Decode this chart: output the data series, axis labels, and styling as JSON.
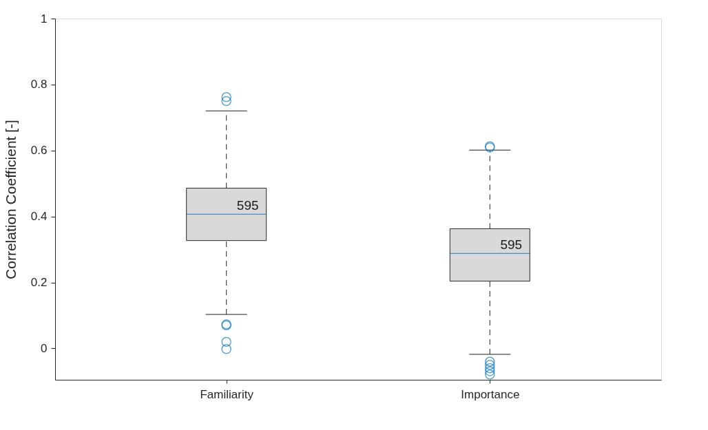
{
  "chart_data": {
    "type": "box",
    "ylabel": "Correlation Coefficient [-]",
    "categories": [
      "Familiarity",
      "Importance"
    ],
    "series": [
      {
        "color": "#d9d9d9",
        "boxes": [
          {
            "low": 0.103,
            "q1": 0.327,
            "median": 0.407,
            "q3": 0.486,
            "high": 0.72,
            "outliers": [
              0.762,
              0.75,
              0.073,
              0.07,
              0.02,
              -0.002
            ]
          },
          {
            "low": -0.018,
            "q1": 0.204,
            "median": 0.288,
            "q3": 0.363,
            "high": 0.601,
            "outliers": [
              0.613,
              0.609,
              -0.04,
              -0.05,
              -0.06,
              -0.069,
              -0.079
            ]
          }
        ]
      }
    ],
    "ylim": [
      -0.095,
      1
    ],
    "yticks": [
      0,
      0.2,
      0.4,
      0.6,
      0.8,
      1
    ],
    "annotations": [
      {
        "text": "595",
        "x": "Familiarity",
        "y": 0.407
      },
      {
        "text": "595",
        "x": "Importance",
        "y": 0.288
      }
    ],
    "grid": false
  }
}
